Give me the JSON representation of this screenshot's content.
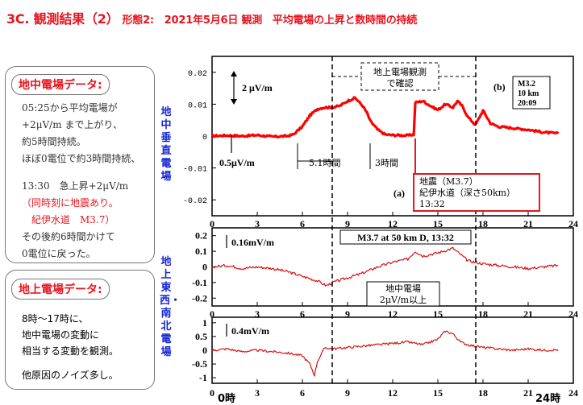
{
  "title": {
    "main": "3C. 観測結果（2）",
    "sub": "形態2:　2021年5月6日 観測　平均電場の上昇と数時間の持続"
  },
  "panel_ground": {
    "title": "地中電場データ:",
    "lines": [
      "05:25から平均電場が",
      "+2μV/m まで上がり、",
      "約5時間持続。",
      "ほぼ0電位で約3時間持続、",
      "13:30　急上昇+2μV/m",
      "（同時刻に地震あり。",
      "　紀伊水道　M3.7）",
      "その後約6時間かけて",
      "0電位に戻った。"
    ]
  },
  "panel_surface": {
    "title": "地上電場データ:",
    "lines": [
      "8時～17時に、",
      "地中電場の変動に",
      "相当する変動を観測。",
      "他原因のノイズ多し。"
    ]
  },
  "vlabel_top": "地中垂直電場",
  "vlabel_bottom": "地上東西・南北電場",
  "bottom_labels": {
    "left": "0時",
    "right": "24時"
  },
  "annotations": {
    "top": {
      "scale": "2 μV/m",
      "scale_small": "0.5μV/m",
      "dur1": "5.1時間",
      "dur2": "3時間",
      "box_line1": "地上電場観測",
      "box_line2": "で確認",
      "b": "(b)",
      "b_box": [
        "M3.2",
        "10 km",
        "20:09"
      ],
      "a": "(a)",
      "eq": [
        "地震（M3.7）",
        "紀伊水道（深さ50km）",
        "13:32"
      ]
    },
    "mid": {
      "scale": "0.16mV/m",
      "box": "M3.7 at 50 km D, 13:32",
      "field_box": [
        "地中電場",
        "2μV/m以上"
      ]
    },
    "bot": {
      "scale": "0.4mV/m"
    }
  },
  "colors": {
    "title": "#e8141e",
    "vlabel": "#1424d8",
    "trace": "#ff0000",
    "trace_dark": "#d81010"
  },
  "chart_data": [
    {
      "type": "line",
      "title": "",
      "xlabel": "",
      "ylabel": "地中垂直電場",
      "xlim": [
        0,
        24
      ],
      "ylim": [
        -0.025,
        0.025
      ],
      "xticks": [
        "0",
        "3",
        "6",
        "9",
        "12",
        "15",
        "18",
        "21",
        "24"
      ],
      "yticks": [
        "-0.02",
        "-0.01",
        "0",
        "0.01",
        "0.02"
      ],
      "series": [
        {
          "values": [
            [
              0,
              0
            ],
            [
              1,
              0.0002
            ],
            [
              2,
              0
            ],
            [
              3,
              0.0003
            ],
            [
              4,
              -0.0002
            ],
            [
              5,
              0
            ],
            [
              5.4,
              0.0005
            ],
            [
              6,
              0.003
            ],
            [
              6.5,
              0.0065
            ],
            [
              7,
              0.0085
            ],
            [
              7.5,
              0.009
            ],
            [
              8,
              0.009
            ],
            [
              8.5,
              0.0095
            ],
            [
              9,
              0.011
            ],
            [
              9.5,
              0.012
            ],
            [
              10,
              0.0095
            ],
            [
              10.3,
              0.0072
            ],
            [
              10.5,
              0.0048
            ],
            [
              11,
              0.002
            ],
            [
              11.5,
              0.0005
            ],
            [
              12,
              0.0003
            ],
            [
              13,
              0.0002
            ],
            [
              13.4,
              0.0005
            ],
            [
              13.5,
              0.0105
            ],
            [
              14,
              0.011
            ],
            [
              14.5,
              0.0095
            ],
            [
              15,
              0.0082
            ],
            [
              15.5,
              0.01
            ],
            [
              16,
              0.009
            ],
            [
              16.3,
              0.011
            ],
            [
              16.6,
              0.0095
            ],
            [
              17,
              0.006
            ],
            [
              17.5,
              0.0035
            ],
            [
              18,
              0.008
            ],
            [
              18.5,
              0.004
            ],
            [
              19,
              0.003
            ],
            [
              20,
              0.0025
            ],
            [
              21,
              0.002
            ],
            [
              22,
              0.0012
            ],
            [
              23,
              0.0008
            ]
          ]
        }
      ]
    },
    {
      "type": "line",
      "title": "",
      "xlabel": "",
      "ylabel": "",
      "xlim": [
        0,
        24
      ],
      "ylim": [
        -0.25,
        0.25
      ],
      "xticks": [
        "0",
        "3",
        "6",
        "9",
        "12",
        "15",
        "18",
        "21",
        "24"
      ],
      "yticks": [
        "0.2",
        "0.1",
        "0",
        "-0.1",
        "-0.2"
      ],
      "series": [
        {
          "values": [
            [
              0,
              0
            ],
            [
              1,
              0.01
            ],
            [
              2,
              -0.01
            ],
            [
              3,
              0.0
            ],
            [
              4,
              -0.01
            ],
            [
              5,
              -0.03
            ],
            [
              6,
              -0.06
            ],
            [
              7,
              -0.09
            ],
            [
              7.6,
              -0.12
            ],
            [
              8,
              -0.1
            ],
            [
              9,
              -0.07
            ],
            [
              10,
              -0.04
            ],
            [
              11,
              0.0
            ],
            [
              12,
              0.03
            ],
            [
              13,
              0.05
            ],
            [
              13.5,
              0.1
            ],
            [
              14,
              0.07
            ],
            [
              15,
              0.09
            ],
            [
              16,
              0.12
            ],
            [
              16.5,
              0.08
            ],
            [
              17,
              0.04
            ],
            [
              18,
              0.02
            ],
            [
              19,
              0.01
            ],
            [
              20,
              0.0
            ],
            [
              21,
              -0.01
            ],
            [
              22,
              0.0
            ],
            [
              23,
              0.01
            ]
          ]
        }
      ]
    },
    {
      "type": "line",
      "title": "",
      "xlabel": "",
      "ylabel": "",
      "xlim": [
        0,
        24
      ],
      "ylim": [
        -1.2,
        1.2
      ],
      "xticks": [
        "0",
        "3",
        "6",
        "9",
        "12",
        "15",
        "18",
        "21",
        "24"
      ],
      "yticks": [
        "1",
        "0.5",
        "0",
        "-0.5",
        "-1"
      ],
      "series": [
        {
          "values": [
            [
              0,
              0
            ],
            [
              1,
              0.05
            ],
            [
              2,
              -0.05
            ],
            [
              3,
              0.0
            ],
            [
              4,
              -0.05
            ],
            [
              5,
              -0.1
            ],
            [
              6,
              -0.2
            ],
            [
              6.5,
              -0.5
            ],
            [
              6.8,
              -0.9
            ],
            [
              7,
              -0.4
            ],
            [
              7.5,
              0.1
            ],
            [
              8,
              0.05
            ],
            [
              9,
              0.1
            ],
            [
              10,
              0.15
            ],
            [
              11,
              0.2
            ],
            [
              12,
              0.25
            ],
            [
              13,
              0.3
            ],
            [
              14,
              0.2
            ],
            [
              15,
              0.4
            ],
            [
              15.5,
              0.7
            ],
            [
              16,
              0.6
            ],
            [
              16.5,
              0.3
            ],
            [
              17,
              0.2
            ],
            [
              18,
              0.1
            ],
            [
              19,
              0.05
            ],
            [
              20,
              0.0
            ],
            [
              21,
              0.05
            ],
            [
              22,
              0.0
            ],
            [
              23,
              0.02
            ]
          ]
        }
      ]
    }
  ]
}
